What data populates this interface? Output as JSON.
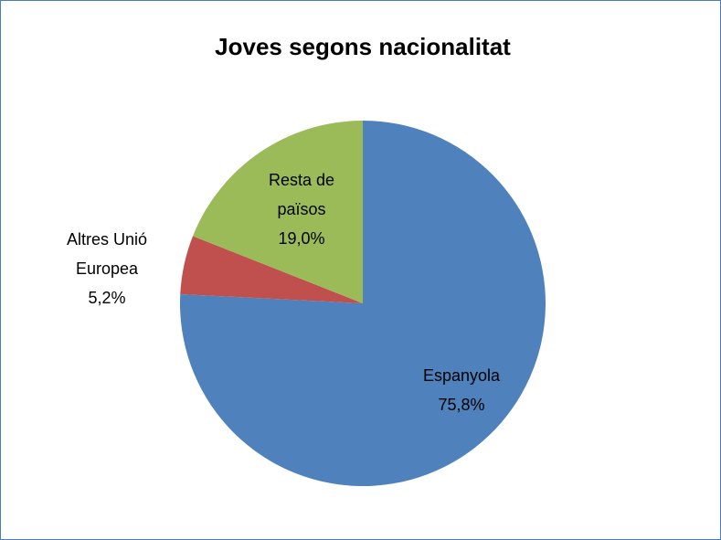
{
  "chart_data": {
    "type": "pie",
    "title": "Joves segons nacionalitat",
    "categories": [
      "Espanyola",
      "Altres Unió Europea",
      "Resta de països"
    ],
    "values": [
      75.8,
      5.2,
      19.0
    ],
    "value_labels": [
      "75,8%",
      "5,2%",
      "19,0%"
    ],
    "colors": [
      "#4f81bd",
      "#c0504d",
      "#9bbb59"
    ]
  }
}
